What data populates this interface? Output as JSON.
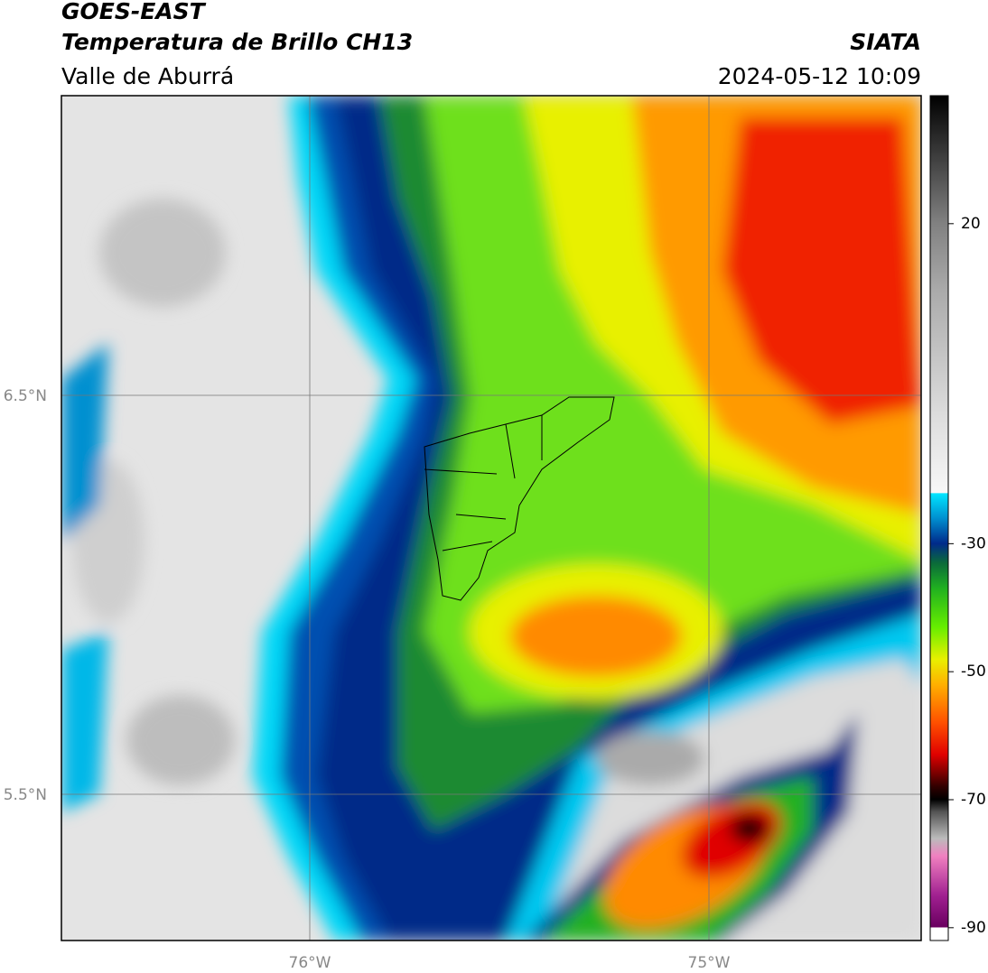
{
  "header": {
    "title": "GOES-EAST",
    "subtitle": "Temperatura de Brillo CH13",
    "region": "Valle de Aburrá",
    "source": "SIATA",
    "timestamp": "2024-05-12 10:09"
  },
  "map": {
    "lat_labels": [
      "6.5°N",
      "5.5°N"
    ],
    "lon_labels": [
      "76°W",
      "75°W"
    ]
  },
  "colorbar": {
    "range": [
      -92,
      40
    ],
    "ticks": [
      20,
      -30,
      -50,
      -70,
      -90
    ]
  }
}
